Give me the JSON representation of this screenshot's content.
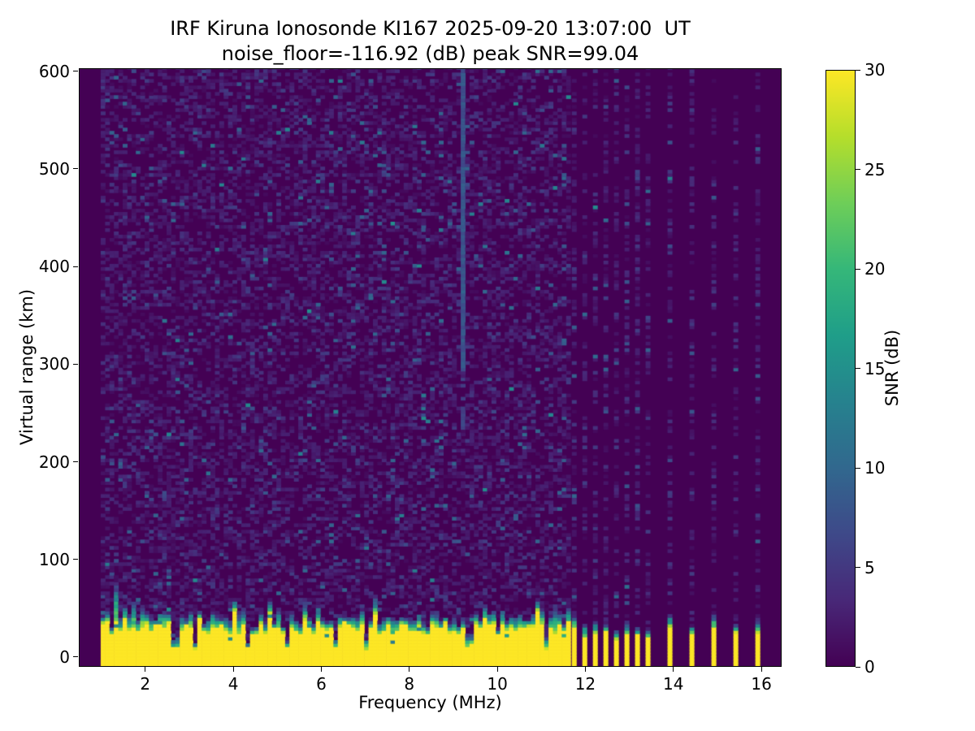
{
  "title": {
    "line1": "IRF Kiruna Ionosonde KI167 2025-09-20 13:07:00  UT",
    "line2": "noise_floor=-116.92 (dB) peak SNR=99.04"
  },
  "axes": {
    "xlabel": "Frequency (MHz)",
    "ylabel": "Virtual range (km)",
    "x_ticks": [
      2,
      4,
      6,
      8,
      10,
      12,
      14,
      16
    ],
    "y_ticks": [
      0,
      100,
      200,
      300,
      400,
      500,
      600
    ],
    "xlim": [
      0.49,
      16.46
    ],
    "ylim": [
      -10,
      603
    ]
  },
  "colorbar": {
    "label": "SNR (dB)",
    "ticks": [
      0,
      5,
      10,
      15,
      20,
      25,
      30
    ],
    "min": 0,
    "max": 30,
    "colormap": {
      "name": "viridis",
      "stops": [
        "#440154",
        "#482878",
        "#3e4989",
        "#31688e",
        "#26828e",
        "#1f9e89",
        "#35b779",
        "#6ece58",
        "#b5de2b",
        "#fde725"
      ]
    }
  },
  "chart_data": {
    "type": "heatmap",
    "title": "IRF Kiruna Ionosonde KI167 2025-09-20 13:07:00  UT",
    "subtitle": "noise_floor=-116.92 (dB) peak SNR=99.04",
    "xlabel": "Frequency (MHz)",
    "ylabel": "Virtual range (km)",
    "zlabel": "SNR (dB)",
    "xlim": [
      0.49,
      16.46
    ],
    "ylim": [
      -10,
      603
    ],
    "zlim": [
      0,
      30
    ],
    "noise_floor_db": -116.92,
    "peak_snr_db": 99.04,
    "grid": false,
    "legend": "colorbar-right",
    "sweep": {
      "dense_start_mhz": 1.02,
      "dense_end_mhz": 11.65,
      "dense_step_mhz": 0.1,
      "sparse_freqs_mhz": [
        11.75,
        11.99,
        12.23,
        12.47,
        12.71,
        12.95,
        13.19,
        13.43,
        13.93,
        14.43,
        14.93,
        15.43,
        15.93
      ],
      "range_row_km": 3.33
    },
    "features": {
      "ground_clutter_band": {
        "snr_db": 30,
        "top_km_min": 20,
        "top_km_max": 34,
        "transition_km_min": 5,
        "transition_km_max": 17,
        "notch_freqs_mhz": [
          2.67,
          3.13,
          4.33,
          5.2,
          6.31,
          7.0,
          9.35,
          11.1
        ]
      },
      "interference_streak": {
        "freq_mhz": 9.2,
        "strong_above_km": 290,
        "faint_above_km": 230,
        "snr_db": 7.5
      },
      "background_noise": {
        "speckle_probability_dense": 0.43,
        "speckle_probability_sparse": 0.38,
        "typical_snr_db": [
          1,
          6
        ],
        "rare_bright_snr_db": [
          9,
          15
        ]
      },
      "no_data_below_mhz": 1.02
    }
  }
}
